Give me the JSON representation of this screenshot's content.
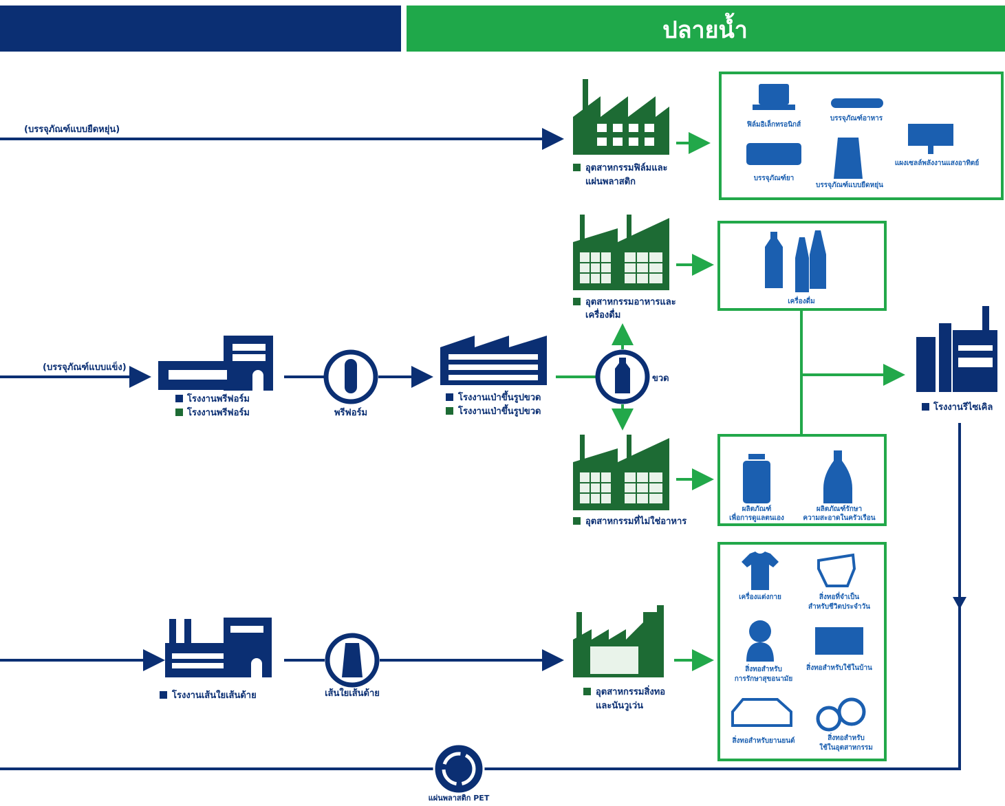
{
  "header": {
    "downstream": "ปลายน้ำ"
  },
  "flows": {
    "flexible": "(บรรจุภัณฑ์แบบยืดหยุ่น)",
    "rigid": "(บรรจุภัณฑ์แบบแข็ง)"
  },
  "film_industry": {
    "lines": [
      "อุตสาหกรรมฟิล์มและ",
      "แผ่นพลาสติก"
    ],
    "products": [
      "ฟิล์มอิเล็กทรอนิกส์",
      "บรรจุภัณฑ์อาหาร",
      "บรรจุภัณฑ์ยา",
      "บรรจุภัณฑ์แบบยืดหยุ่น",
      "แผงเซลล์พลังงานแสงอาทิตย์"
    ]
  },
  "food_industry": {
    "lines": [
      "อุตสาหกรรมอาหารและ",
      "เครื่องดื่ม"
    ],
    "products": [
      "เครื่องดื่ม"
    ]
  },
  "nonfood_industry": {
    "lines": [
      "อุตสาหกรรมที่ไม่ใช่อาหาร"
    ],
    "products": [
      [
        "ผลิตภัณฑ์",
        "เพื่อการดูแลตนเอง"
      ],
      [
        "ผลิตภัณฑ์รักษา",
        "ความสะอาดในครัวเรือน"
      ]
    ]
  },
  "preform_plant": {
    "labels": [
      "โรงงานพรีฟอร์ม",
      "โรงงานพรีฟอร์ม"
    ],
    "product": "พรีฟอร์ม"
  },
  "blow_plant": {
    "labels": [
      "โรงงานเป่าขึ้นรูปขวด",
      "โรงงานเป่าขึ้นรูปขวด"
    ],
    "product": "ขวด"
  },
  "recycle_plant": {
    "label": "โรงงานรีไซเคิล",
    "product": "แผ่นพลาสติก PET"
  },
  "fiber_plant": {
    "label": "โรงงานเส้นใยเส้นด้าย",
    "product": "เส้นใยเส้นด้าย"
  },
  "textile_industry": {
    "lines": [
      "อุตสาหกรรมสิ่งทอ",
      "และนันวูเว่น"
    ],
    "products": [
      [
        "เครื่องแต่งกาย"
      ],
      [
        "สิ่งทอที่จำเป็น",
        "สำหรับชีวิตประจำวัน"
      ],
      [
        "สิ่งทอสำหรับ",
        "การรักษาสุขอนามัย"
      ],
      [
        "สิ่งทอสำหรับใช้ในบ้าน"
      ],
      [
        "สิ่งทอสำหรับยานยนต์"
      ],
      [
        "สิ่งทอสำหรับ",
        "ใช้ในอุตสาหกรรม"
      ]
    ]
  }
}
